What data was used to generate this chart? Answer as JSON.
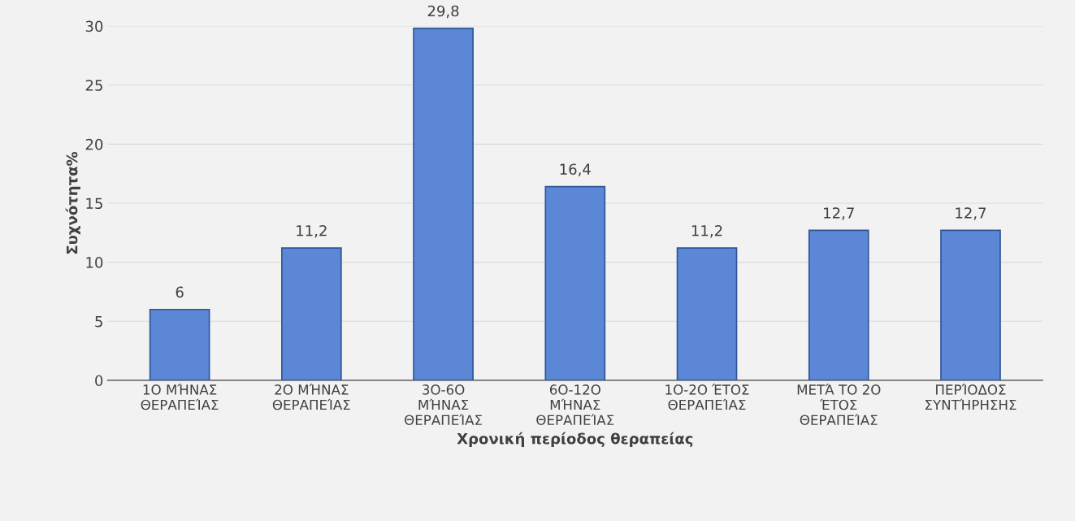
{
  "chart_data": {
    "type": "bar",
    "categories": [
      "1Ο ΜΉΝΑΣ\nΘΕΡΑΠΕΊΑΣ",
      "2Ο ΜΉΝΑΣ\nΘΕΡΑΠΕΊΑΣ",
      "3Ο-6Ο\nΜΉΝΑΣ\nΘΕΡΑΠΕΊΑΣ",
      "6Ο-12Ο\nΜΉΝΑΣ\nΘΕΡΑΠΕΊΑΣ",
      "1Ο-2Ο ΈΤΟΣ\nΘΕΡΑΠΕΊΑΣ",
      "ΜΕΤΆ ΤΟ 2Ο\nΈΤΟΣ\nΘΕΡΑΠΕΊΑΣ",
      "ΠΕΡΊΟΔΟΣ\nΣΥΝΤΉΡΗΣΗΣ"
    ],
    "values": [
      6,
      11.2,
      29.8,
      16.4,
      11.2,
      12.7,
      12.7
    ],
    "value_labels": [
      "6",
      "11,2",
      "29,8",
      "16,4",
      "11,2",
      "12,7",
      "12,7"
    ],
    "color": "#5b87d6",
    "xlabel": "Χρονική περίοδος θεραπείας",
    "ylabel": "Συχνότητα%",
    "ylim": [
      0,
      30
    ],
    "yticks": [
      0,
      5,
      10,
      15,
      20,
      25,
      30
    ],
    "grid": "y"
  }
}
